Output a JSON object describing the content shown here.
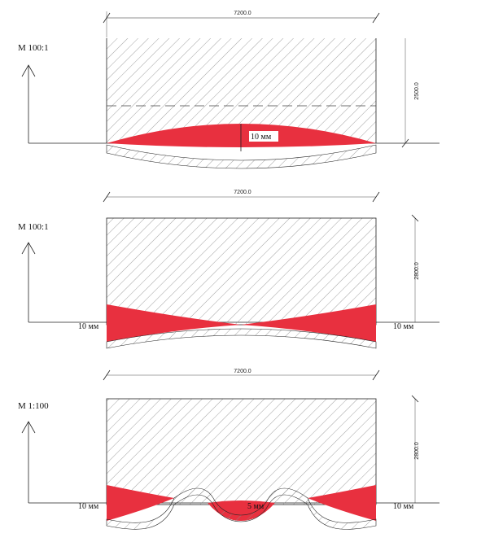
{
  "colors": {
    "fill": "#e8303f",
    "hatch": "#8a8a8a",
    "line": "#222222"
  },
  "panels": [
    {
      "scale": "M 100:1",
      "width_dim": "7200.0",
      "height_dim": "2500.0",
      "labels": {
        "center": "10 мм"
      }
    },
    {
      "scale": "M 100:1",
      "width_dim": "7200.0",
      "height_dim": "2800.0",
      "labels": {
        "left": "10 мм",
        "right": "10 мм"
      }
    },
    {
      "scale": "M 1:100",
      "width_dim": "7200.0",
      "height_dim": "2800.0",
      "labels": {
        "left": "10 мм",
        "center": "5 мм",
        "right": "10 мм"
      }
    }
  ]
}
